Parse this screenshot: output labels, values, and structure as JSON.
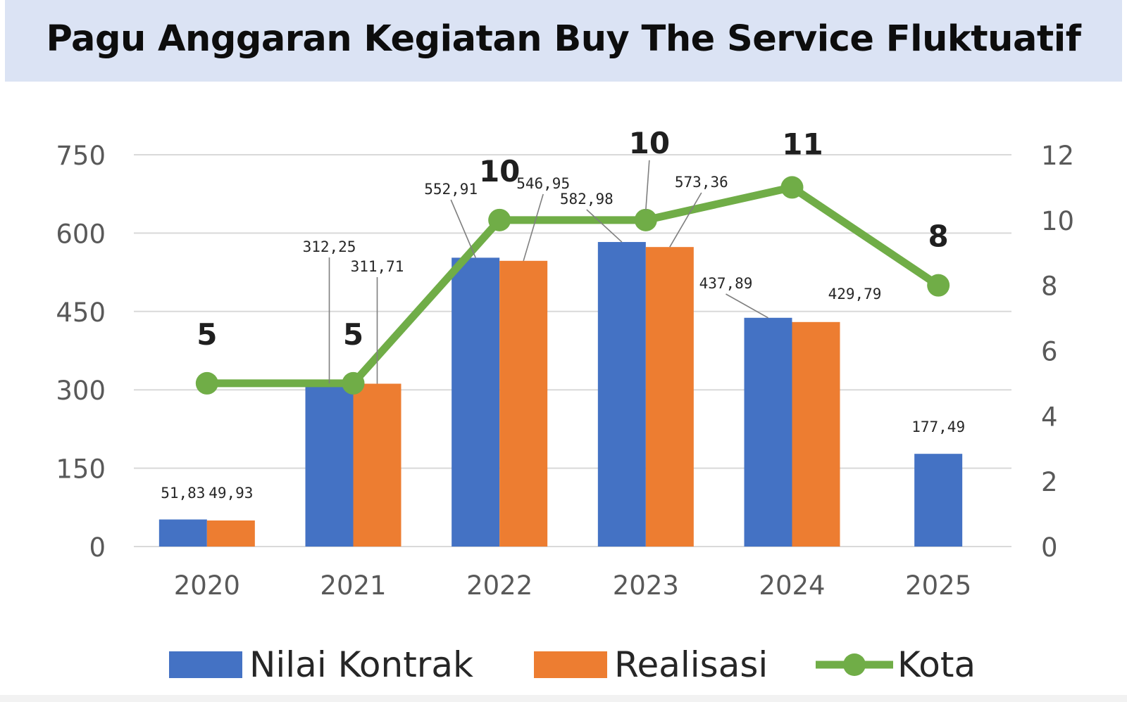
{
  "title": "Pagu Anggaran Kegiatan Buy The Service Fluktuatif",
  "colors": {
    "nilai_kontrak": "#4472c4",
    "realisasi": "#ed7d31",
    "kota": "#70ad47",
    "title_band": "#dbe3f4",
    "grid": "#d9d9d9",
    "axis_text": "#595959"
  },
  "chart_data": {
    "type": "bar",
    "categories": [
      "2020",
      "2021",
      "2022",
      "2023",
      "2024",
      "2025"
    ],
    "y_left": {
      "min": 0,
      "max": 750,
      "ticks": [
        "0",
        "150",
        "300",
        "450",
        "600",
        "750"
      ]
    },
    "y_right": {
      "min": 0,
      "max": 12,
      "ticks": [
        "0",
        "2",
        "4",
        "6",
        "8",
        "10",
        "12"
      ]
    },
    "grid": true,
    "legend_position": "bottom",
    "series": [
      {
        "name": "Nilai Kontrak",
        "kind": "bar",
        "axis": "left",
        "values": [
          51.83,
          312.25,
          552.91,
          582.98,
          437.89,
          177.49
        ],
        "labels": [
          "51,83",
          "312,25",
          "552,91",
          "582,98",
          "437,89",
          "177,49"
        ]
      },
      {
        "name": "Realisasi",
        "kind": "bar",
        "axis": "left",
        "values": [
          49.93,
          311.71,
          546.95,
          573.36,
          429.79,
          null
        ],
        "labels": [
          "49,93",
          "311,71",
          "546,95",
          "573,36",
          "429,79",
          null
        ]
      },
      {
        "name": "Kota",
        "kind": "line",
        "axis": "right",
        "values": [
          5,
          5,
          10,
          10,
          11,
          8
        ],
        "labels": [
          "5",
          "5",
          "10",
          "10",
          "11",
          "8"
        ]
      }
    ]
  }
}
